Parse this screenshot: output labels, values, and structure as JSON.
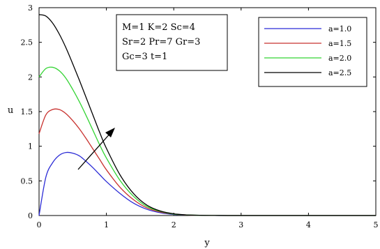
{
  "chart_data": {
    "type": "line",
    "xlabel": "y",
    "ylabel": "u",
    "xlim": [
      0,
      5
    ],
    "ylim": [
      0,
      3
    ],
    "xticks": [
      "0",
      "1",
      "2",
      "3",
      "4",
      "5"
    ],
    "yticks": [
      "0",
      "0.5",
      "1",
      "1.5",
      "2",
      "2.5",
      "3"
    ],
    "grid": false,
    "legend_position": "top-right",
    "parameters": [
      "M=1 K=2 Sc=4",
      "Sr=2 Pr=7 Gr=3",
      "Gc=3 t=1"
    ],
    "annotation": "arrow indicating increasing a",
    "x": [
      0,
      0.1,
      0.2,
      0.3,
      0.4,
      0.5,
      0.6,
      0.7,
      0.8,
      0.9,
      1.0,
      1.2,
      1.4,
      1.6,
      1.8,
      2.0,
      2.2,
      2.4,
      2.6,
      2.8,
      3.0,
      3.5,
      4.0,
      4.5,
      5.0
    ],
    "series": [
      {
        "name": "a=1.0",
        "color": "#2b2bd6",
        "values": [
          0.0,
          0.55,
          0.76,
          0.87,
          0.91,
          0.9,
          0.86,
          0.78,
          0.69,
          0.59,
          0.49,
          0.32,
          0.18,
          0.09,
          0.04,
          0.015,
          0.006,
          0.002,
          0.001,
          0.0,
          0.0,
          0.0,
          0.0,
          0.0,
          0.0
        ]
      },
      {
        "name": "a=1.5",
        "color": "#c8312e",
        "values": [
          1.18,
          1.45,
          1.53,
          1.53,
          1.47,
          1.37,
          1.25,
          1.11,
          0.96,
          0.81,
          0.66,
          0.41,
          0.23,
          0.11,
          0.05,
          0.02,
          0.007,
          0.003,
          0.001,
          0.0,
          0.0,
          0.0,
          0.0,
          0.0,
          0.0
        ]
      },
      {
        "name": "a=2.0",
        "color": "#33d433",
        "values": [
          2.0,
          2.12,
          2.14,
          2.09,
          1.98,
          1.82,
          1.64,
          1.44,
          1.23,
          1.02,
          0.83,
          0.51,
          0.28,
          0.13,
          0.06,
          0.02,
          0.008,
          0.003,
          0.001,
          0.0,
          0.0,
          0.0,
          0.0,
          0.0,
          0.0
        ]
      },
      {
        "name": "a=2.5",
        "color": "#000000",
        "values": [
          2.9,
          2.88,
          2.78,
          2.62,
          2.42,
          2.19,
          1.95,
          1.7,
          1.45,
          1.2,
          0.97,
          0.59,
          0.32,
          0.15,
          0.065,
          0.025,
          0.009,
          0.003,
          0.001,
          0.0,
          0.0,
          0.0,
          0.0,
          0.0,
          0.0
        ]
      }
    ]
  }
}
